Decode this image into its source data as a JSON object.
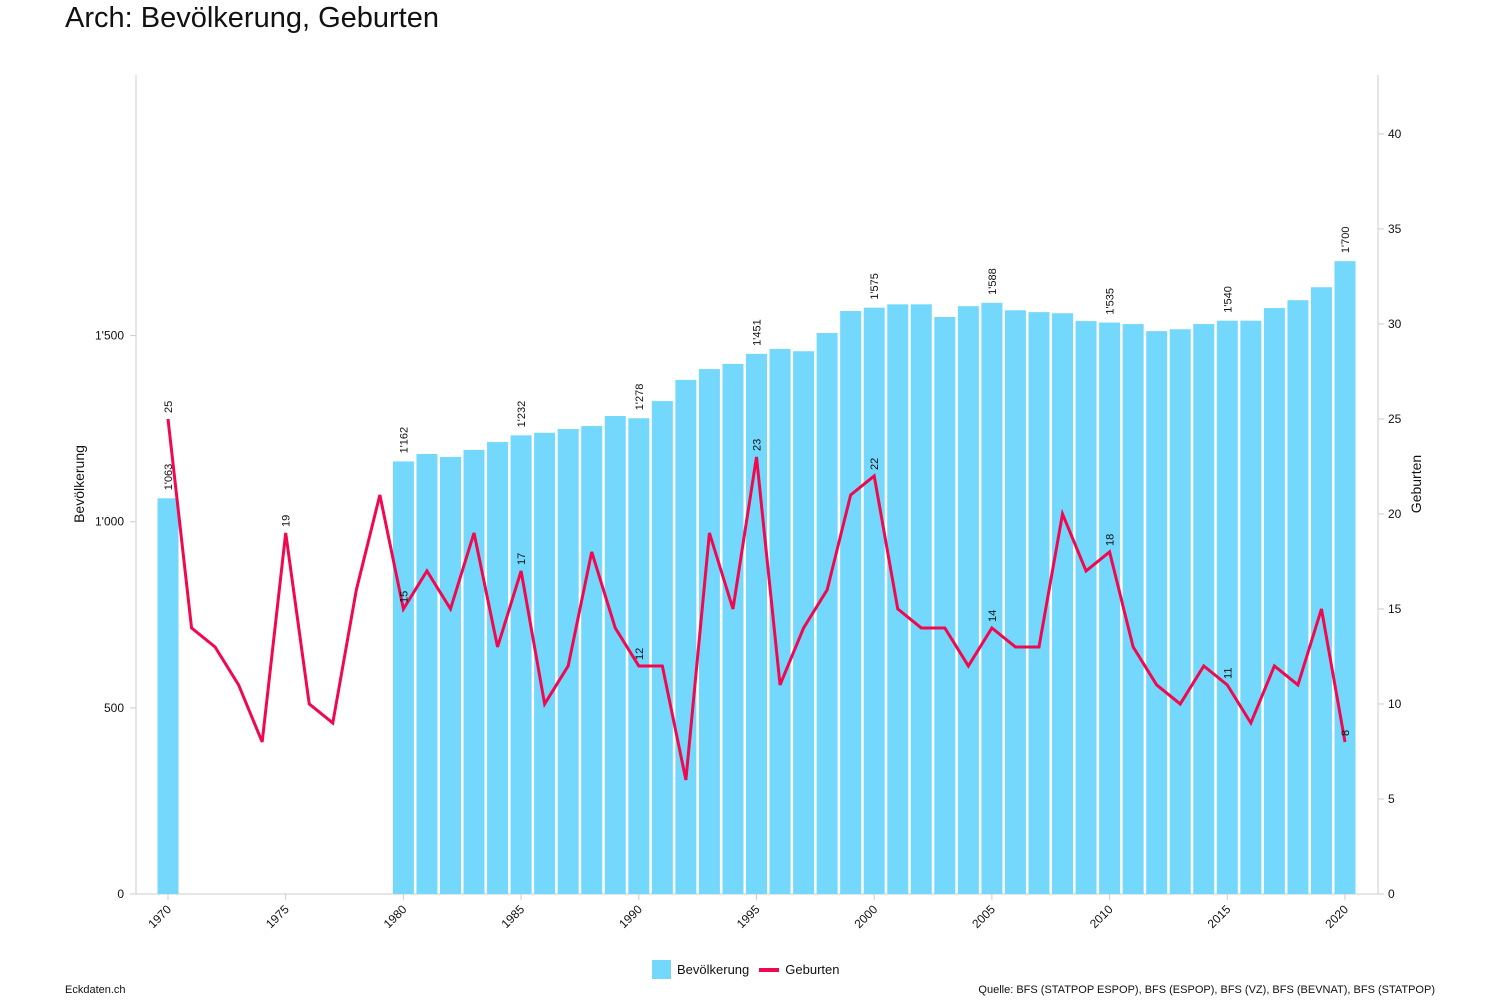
{
  "title": "Arch: Bevölkerung, Geburten",
  "footer_left": "Eckdaten.ch",
  "footer_right": "Quelle: BFS (STATPOP ESPOP), BFS (ESPOP), BFS (VZ), BFS (BEVNAT), BFS (STATPOP)",
  "chart_data": {
    "type": "bar+line",
    "years": [
      1970,
      1971,
      1972,
      1973,
      1974,
      1975,
      1976,
      1977,
      1978,
      1979,
      1980,
      1981,
      1982,
      1983,
      1984,
      1985,
      1986,
      1987,
      1988,
      1989,
      1990,
      1991,
      1992,
      1993,
      1994,
      1995,
      1996,
      1997,
      1998,
      1999,
      2000,
      2001,
      2002,
      2003,
      2004,
      2005,
      2006,
      2007,
      2008,
      2009,
      2010,
      2011,
      2012,
      2013,
      2014,
      2015,
      2016,
      2017,
      2018,
      2019,
      2020
    ],
    "series": [
      {
        "name": "Bevölkerung",
        "type": "bar",
        "axis": "left",
        "color": "#73d8fc",
        "values": [
          1063,
          null,
          null,
          null,
          null,
          null,
          null,
          null,
          null,
          null,
          1162,
          1182,
          1174,
          1193,
          1214,
          1232,
          1239,
          1249,
          1257,
          1284,
          1278,
          1324,
          1381,
          1410,
          1424,
          1451,
          1464,
          1458,
          1507,
          1566,
          1575,
          1584,
          1584,
          1550,
          1579,
          1588,
          1568,
          1563,
          1560,
          1539,
          1535,
          1531,
          1512,
          1517,
          1531,
          1540,
          1540,
          1574,
          1595,
          1630,
          1700
        ],
        "labeled_years": [
          1970,
          1980,
          1985,
          1990,
          1995,
          2000,
          2005,
          2010,
          2015,
          2020
        ]
      },
      {
        "name": "Geburten",
        "type": "line",
        "axis": "right",
        "color": "#f0094f",
        "values": [
          25,
          14,
          13,
          11,
          8,
          19,
          10,
          9,
          16,
          21,
          15,
          17,
          15,
          19,
          13,
          17,
          10,
          12,
          18,
          14,
          12,
          12,
          6,
          19,
          15,
          23,
          11,
          14,
          16,
          21,
          22,
          15,
          14,
          14,
          12,
          14,
          13,
          13,
          20,
          17,
          18,
          13,
          11,
          10,
          12,
          11,
          9,
          12,
          11,
          15,
          8
        ],
        "labeled_years": [
          1970,
          1975,
          1980,
          1985,
          1990,
          1995,
          2000,
          2005,
          2010,
          2015,
          2020
        ]
      }
    ],
    "ylabel_left": "Bevölkerung",
    "ylabel_right": "Geburten",
    "ylim_left": [
      0,
      2200
    ],
    "ylim_right": [
      0,
      43.1
    ],
    "yticks_left": [
      0,
      500,
      1000,
      1500
    ],
    "yticks_left_labels": [
      "0",
      "500",
      "1'000",
      "1'500"
    ],
    "yticks_right": [
      0,
      5,
      10,
      15,
      20,
      25,
      30,
      35,
      40
    ],
    "xticks": [
      1970,
      1975,
      1980,
      1985,
      1990,
      1995,
      2000,
      2005,
      2010,
      2015,
      2020
    ],
    "grid": false,
    "legend": "bottom-center"
  }
}
